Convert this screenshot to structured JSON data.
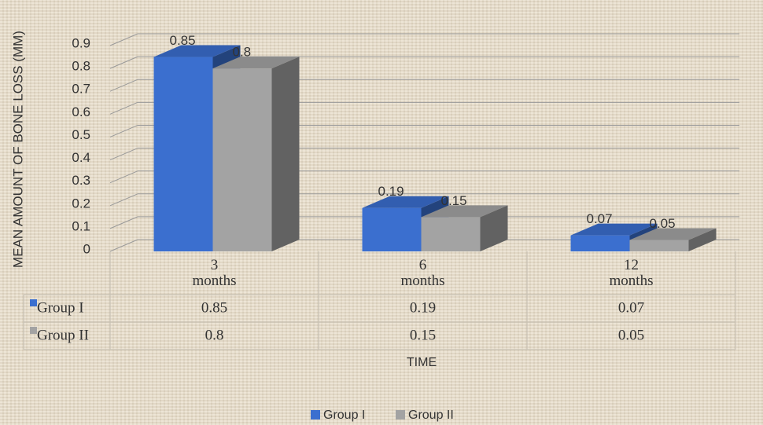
{
  "chart_data": {
    "type": "bar3d",
    "y_label": "MEAN AMOUNT OF BONE LOSS (MM)",
    "x_label": "TIME",
    "categories": [
      "3 months",
      "6 months",
      "12 months"
    ],
    "series": [
      {
        "name": "Group I",
        "color": "#3b6fcf",
        "values": [
          0.85,
          0.19,
          0.07
        ]
      },
      {
        "name": "Group II",
        "color": "#a3a3a3",
        "values": [
          0.8,
          0.15,
          0.05
        ]
      }
    ],
    "ylim": [
      0,
      0.9
    ],
    "yticks": [
      0,
      0.1,
      0.2,
      0.3,
      0.4,
      0.5,
      0.6,
      0.7,
      0.8,
      0.9
    ],
    "grid": true,
    "data_table": true,
    "legend": "bottom"
  }
}
